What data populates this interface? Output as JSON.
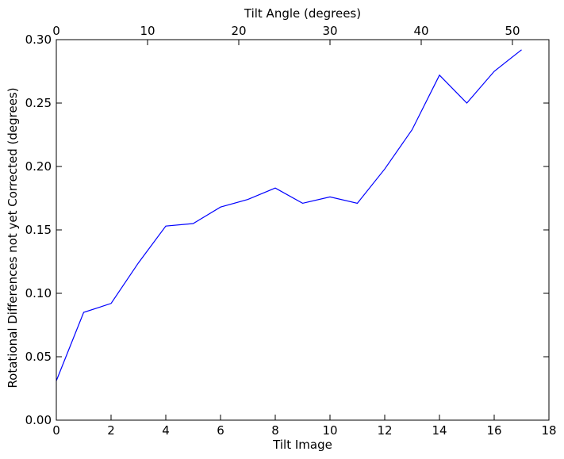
{
  "chart_data": {
    "type": "line",
    "xlabel": "Tilt Image",
    "ylabel": "Rotational Differences not yet Corrected (degrees)",
    "top_xlabel": "Tilt Angle (degrees)",
    "xlim": [
      0,
      18
    ],
    "ylim": [
      0.0,
      0.3
    ],
    "top_xlim": [
      0,
      54
    ],
    "x_ticks": [
      0,
      2,
      4,
      6,
      8,
      10,
      12,
      14,
      16,
      18
    ],
    "x_tick_labels": [
      "0",
      "2",
      "4",
      "6",
      "8",
      "10",
      "12",
      "14",
      "16",
      "18"
    ],
    "y_ticks": [
      0.0,
      0.05,
      0.1,
      0.15,
      0.2,
      0.25,
      0.3
    ],
    "y_tick_labels": [
      "0.00",
      "0.05",
      "0.10",
      "0.15",
      "0.20",
      "0.25",
      "0.30"
    ],
    "top_ticks": [
      0,
      10,
      20,
      30,
      40,
      50
    ],
    "top_tick_labels": [
      "0",
      "10",
      "20",
      "30",
      "40",
      "50"
    ],
    "grid": false,
    "series": [
      {
        "color": "#0000ff",
        "x": [
          0,
          1,
          2,
          3,
          4,
          5,
          6,
          7,
          8,
          9,
          10,
          11,
          12,
          13,
          14,
          15,
          16,
          17
        ],
        "y": [
          0.031,
          0.085,
          0.092,
          0.124,
          0.153,
          0.155,
          0.168,
          0.174,
          0.183,
          0.171,
          0.176,
          0.171,
          0.198,
          0.229,
          0.272,
          0.25,
          0.275,
          0.292
        ]
      }
    ]
  }
}
